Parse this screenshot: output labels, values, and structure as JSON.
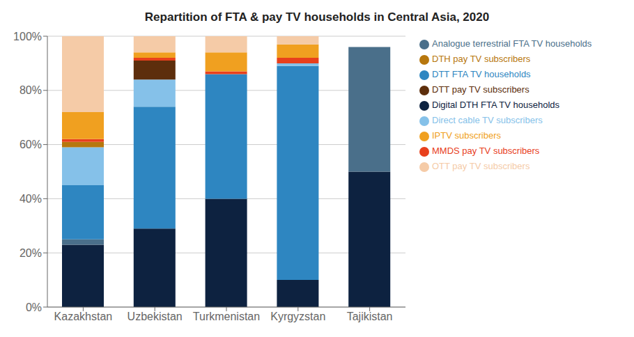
{
  "chart_data": {
    "type": "bar",
    "stacked": true,
    "title": "Repartition of FTA & pay TV households in Central Asia, 2020",
    "categories": [
      "Kazakhstan",
      "Uzbekistan",
      "Turkmenistan",
      "Kyrgyzstan",
      "Tajikistan"
    ],
    "series": [
      {
        "name": "Digital DTH FTA TV households",
        "color": "#0d2240",
        "values": [
          0.23,
          0.29,
          0.4,
          0.1,
          0.5
        ]
      },
      {
        "name": "Analogue terrestrial FTA TV households",
        "color": "#4a6f8a",
        "values": [
          0.02,
          0.0,
          0.0,
          0.0,
          0.46
        ]
      },
      {
        "name": "DTT FTA TV households",
        "color": "#2e86c1",
        "values": [
          0.2,
          0.45,
          0.46,
          0.79,
          0.0
        ]
      },
      {
        "name": "Direct cable TV subscribers",
        "color": "#85c1e9",
        "values": [
          0.14,
          0.1,
          0.0,
          0.01,
          0.0
        ]
      },
      {
        "name": "DTT pay TV subscribers",
        "color": "#5d2e0c",
        "values": [
          0.0,
          0.07,
          0.0,
          0.0,
          0.0
        ]
      },
      {
        "name": "DTH pay TV subscribers",
        "color": "#b7770d",
        "values": [
          0.02,
          0.0,
          0.0,
          0.0,
          0.0
        ]
      },
      {
        "name": "MMDS pay TV subscribers",
        "color": "#e8401c",
        "values": [
          0.01,
          0.01,
          0.01,
          0.02,
          0.0
        ]
      },
      {
        "name": "IPTV subscribers",
        "color": "#f0a020",
        "values": [
          0.1,
          0.02,
          0.07,
          0.05,
          0.0
        ]
      },
      {
        "name": "OTT pay TV subscribers",
        "color": "#f5cba7",
        "values": [
          0.28,
          0.06,
          0.06,
          0.03,
          0.0
        ]
      }
    ],
    "ylim": [
      0,
      1.0
    ],
    "yticks": [
      {
        "value": 0.0,
        "label": "0%"
      },
      {
        "value": 0.2,
        "label": "20%"
      },
      {
        "value": 0.4,
        "label": "40%"
      },
      {
        "value": 0.6,
        "label": "60%"
      },
      {
        "value": 0.8,
        "label": "80%"
      },
      {
        "value": 1.0,
        "label": "100%"
      }
    ],
    "grid": true,
    "legend": "right"
  }
}
